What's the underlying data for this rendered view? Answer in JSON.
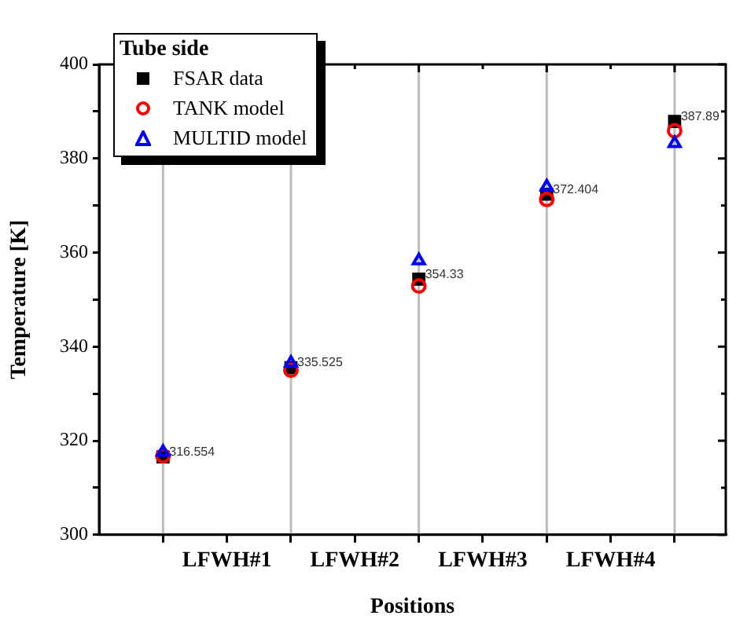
{
  "chart_data": {
    "type": "scatter",
    "xlabel": "Positions",
    "ylabel": "Temperature [K]",
    "legend_title": "Tube side",
    "x": [
      1,
      2,
      3,
      4,
      5
    ],
    "xlim": [
      0.5,
      5.4
    ],
    "xticks": [
      {
        "value": 1,
        "label": null
      },
      {
        "value": 1.5,
        "label": "LFWH#1"
      },
      {
        "value": 2,
        "label": null
      },
      {
        "value": 2.5,
        "label": "LFWH#2"
      },
      {
        "value": 3,
        "label": null
      },
      {
        "value": 3.5,
        "label": "LFWH#3"
      },
      {
        "value": 4,
        "label": null
      },
      {
        "value": 4.5,
        "label": "LFWH#4"
      },
      {
        "value": 5,
        "label": null
      }
    ],
    "ylim": [
      300,
      400
    ],
    "yticks": [
      300,
      {
        "value": 310,
        "label": null
      },
      320,
      {
        "value": 330,
        "label": null
      },
      340,
      {
        "value": 350,
        "label": null
      },
      360,
      {
        "value": 370,
        "label": null
      },
      380,
      {
        "value": 390,
        "label": null
      },
      400
    ],
    "grid": false,
    "legend": "top left",
    "ref_lines": [
      {
        "axis": "x",
        "value": 1,
        "color": "#bbbbbb"
      },
      {
        "axis": "x",
        "value": 2,
        "color": "#bbbbbb"
      },
      {
        "axis": "x",
        "value": 3,
        "color": "#bbbbbb"
      },
      {
        "axis": "x",
        "value": 4,
        "color": "#bbbbbb"
      },
      {
        "axis": "x",
        "value": 5,
        "color": "#bbbbbb"
      }
    ],
    "series": [
      {
        "name": "FSAR data",
        "color": "#000000",
        "marker": "square",
        "values": [
          316.554,
          335.525,
          354.33,
          372.404,
          387.89
        ],
        "value_labels": [
          "316.554",
          "335.525",
          "354.33",
          "372.404",
          "387.89"
        ]
      },
      {
        "name": "TANK model",
        "color": "#ff0000",
        "marker": "circle",
        "values": [
          316.8,
          335.0,
          352.9,
          371.3,
          385.9
        ]
      },
      {
        "name": "MULTID model",
        "color": "#0000ff",
        "marker": "triangle",
        "values": [
          317.6,
          336.5,
          358.3,
          374.0,
          383.2
        ]
      }
    ]
  }
}
